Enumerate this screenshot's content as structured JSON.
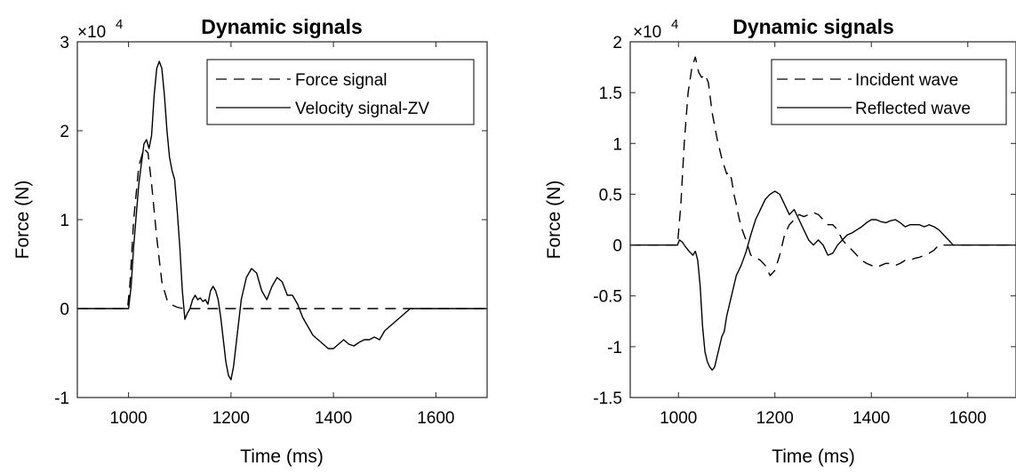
{
  "chart_data": [
    {
      "type": "line",
      "title": "Dynamic signals",
      "xlabel": "Time (ms)",
      "ylabel": "Force (N)",
      "exponent_base": "×10",
      "exponent_power": "4",
      "xlim": [
        900,
        1700
      ],
      "ylim": [
        -10000,
        30000
      ],
      "xticks": [
        1000,
        1200,
        1400,
        1600
      ],
      "xtick_labels": [
        "1000",
        "1200",
        "1400",
        "1600"
      ],
      "yticks": [
        -10000,
        0,
        10000,
        20000,
        30000
      ],
      "ytick_labels": [
        "-1",
        "0",
        "1",
        "2",
        "3"
      ],
      "grid": false,
      "legend_position": "top-right",
      "series": [
        {
          "name": "Force signal",
          "style": "dashed",
          "color": "#000000",
          "x": [
            900,
            998,
            1003,
            1010,
            1020,
            1030,
            1038,
            1045,
            1055,
            1065,
            1075,
            1085,
            1095,
            1103,
            1110,
            1700
          ],
          "y": [
            0,
            0,
            3000,
            10000,
            16000,
            18000,
            17500,
            14000,
            8000,
            3000,
            1000,
            400,
            150,
            50,
            0,
            0
          ]
        },
        {
          "name": "Velocity signal-ZV",
          "style": "solid",
          "color": "#000000",
          "x": [
            900,
            1000,
            1005,
            1010,
            1020,
            1030,
            1035,
            1040,
            1045,
            1050,
            1055,
            1060,
            1065,
            1070,
            1075,
            1080,
            1085,
            1090,
            1095,
            1100,
            1105,
            1110,
            1115,
            1120,
            1125,
            1130,
            1135,
            1140,
            1145,
            1150,
            1155,
            1160,
            1165,
            1170,
            1175,
            1180,
            1185,
            1190,
            1195,
            1200,
            1205,
            1210,
            1215,
            1220,
            1230,
            1240,
            1250,
            1260,
            1270,
            1280,
            1290,
            1300,
            1310,
            1320,
            1330,
            1340,
            1350,
            1360,
            1370,
            1380,
            1390,
            1400,
            1410,
            1420,
            1430,
            1440,
            1450,
            1460,
            1470,
            1480,
            1490,
            1500,
            1510,
            1520,
            1530,
            1540,
            1550,
            1560,
            1570,
            1700
          ],
          "y": [
            0,
            0,
            2500,
            7000,
            14000,
            18500,
            19000,
            18000,
            19500,
            24000,
            27000,
            27800,
            27000,
            24000,
            20000,
            17000,
            15500,
            14500,
            11000,
            7000,
            2000,
            -1200,
            -500,
            0,
            1000,
            1500,
            1000,
            1200,
            800,
            1000,
            500,
            2000,
            2500,
            2000,
            1000,
            -1000,
            -3500,
            -6000,
            -7500,
            -8000,
            -6500,
            -4000,
            -1500,
            1000,
            3500,
            4500,
            4000,
            2000,
            1000,
            2500,
            3500,
            3000,
            1500,
            1500,
            500,
            -1000,
            -2000,
            -3000,
            -3500,
            -4000,
            -4500,
            -4500,
            -4000,
            -3500,
            -4000,
            -4200,
            -3800,
            -3500,
            -3500,
            -3200,
            -3500,
            -2500,
            -2000,
            -1500,
            -1000,
            -500,
            0,
            0,
            0,
            0
          ]
        }
      ]
    },
    {
      "type": "line",
      "title": "Dynamic signals",
      "xlabel": "Time (ms)",
      "ylabel": "Force (N)",
      "exponent_base": "×10",
      "exponent_power": "4",
      "xlim": [
        900,
        1700
      ],
      "ylim": [
        -15000,
        20000
      ],
      "xticks": [
        1000,
        1200,
        1400,
        1600
      ],
      "xtick_labels": [
        "1000",
        "1200",
        "1400",
        "1600"
      ],
      "yticks": [
        -15000,
        -10000,
        -5000,
        0,
        5000,
        10000,
        15000,
        20000
      ],
      "ytick_labels": [
        "-1.5",
        "-1",
        "-0.5",
        "0",
        "0.5",
        "1",
        "1.5",
        "2"
      ],
      "grid": false,
      "legend_position": "top-right",
      "series": [
        {
          "name": "Incident wave",
          "style": "dashed",
          "color": "#000000",
          "x": [
            900,
            998,
            1005,
            1012,
            1020,
            1028,
            1035,
            1042,
            1048,
            1055,
            1062,
            1070,
            1080,
            1090,
            1100,
            1105,
            1110,
            1115,
            1120,
            1125,
            1130,
            1140,
            1150,
            1160,
            1170,
            1180,
            1190,
            1200,
            1210,
            1220,
            1230,
            1240,
            1250,
            1260,
            1270,
            1280,
            1290,
            1300,
            1310,
            1320,
            1330,
            1340,
            1350,
            1360,
            1370,
            1380,
            1390,
            1400,
            1410,
            1420,
            1430,
            1440,
            1450,
            1460,
            1470,
            1480,
            1490,
            1500,
            1510,
            1520,
            1530,
            1540,
            1550,
            1560,
            1570,
            1700
          ],
          "y": [
            0,
            0,
            4000,
            10000,
            15000,
            17500,
            18500,
            17000,
            16500,
            16800,
            16000,
            13000,
            10500,
            8500,
            7000,
            7200,
            6500,
            5000,
            4000,
            2800,
            1800,
            500,
            -1000,
            -1200,
            -1500,
            -2000,
            -3000,
            -2500,
            -1000,
            1000,
            2000,
            2500,
            3000,
            2800,
            3000,
            3200,
            3000,
            2500,
            2000,
            2000,
            1500,
            500,
            0,
            -500,
            -1000,
            -1500,
            -1800,
            -2000,
            -2200,
            -2000,
            -1800,
            -1800,
            -2000,
            -1800,
            -1500,
            -1500,
            -1300,
            -1200,
            -1000,
            -800,
            -500,
            0,
            0,
            0,
            0,
            0
          ]
        },
        {
          "name": "Reflected wave",
          "style": "solid",
          "color": "#000000",
          "x": [
            900,
            998,
            1002,
            1008,
            1015,
            1022,
            1030,
            1035,
            1040,
            1045,
            1050,
            1055,
            1060,
            1065,
            1070,
            1075,
            1080,
            1085,
            1090,
            1095,
            1100,
            1105,
            1110,
            1120,
            1130,
            1140,
            1150,
            1160,
            1170,
            1180,
            1190,
            1200,
            1210,
            1220,
            1230,
            1240,
            1250,
            1260,
            1270,
            1280,
            1290,
            1300,
            1310,
            1320,
            1330,
            1340,
            1350,
            1360,
            1370,
            1380,
            1390,
            1400,
            1410,
            1420,
            1430,
            1440,
            1450,
            1460,
            1470,
            1480,
            1490,
            1500,
            1510,
            1520,
            1530,
            1540,
            1550,
            1560,
            1570,
            1700
          ],
          "y": [
            0,
            0,
            500,
            300,
            -200,
            -600,
            -1000,
            -600,
            -1500,
            -4000,
            -8000,
            -10500,
            -11500,
            -12000,
            -12300,
            -12000,
            -11000,
            -10000,
            -9000,
            -8500,
            -7000,
            -6000,
            -5000,
            -3000,
            -2000,
            -700,
            1000,
            2500,
            3500,
            4500,
            5000,
            5300,
            5000,
            4000,
            3000,
            3500,
            2500,
            1500,
            500,
            0,
            500,
            0,
            -1000,
            -800,
            0,
            500,
            1000,
            1200,
            1500,
            1800,
            2200,
            2500,
            2500,
            2300,
            2200,
            2400,
            2500,
            2200,
            1800,
            2000,
            2000,
            2000,
            1800,
            2000,
            1800,
            1500,
            1000,
            500,
            0,
            0
          ]
        }
      ]
    }
  ]
}
